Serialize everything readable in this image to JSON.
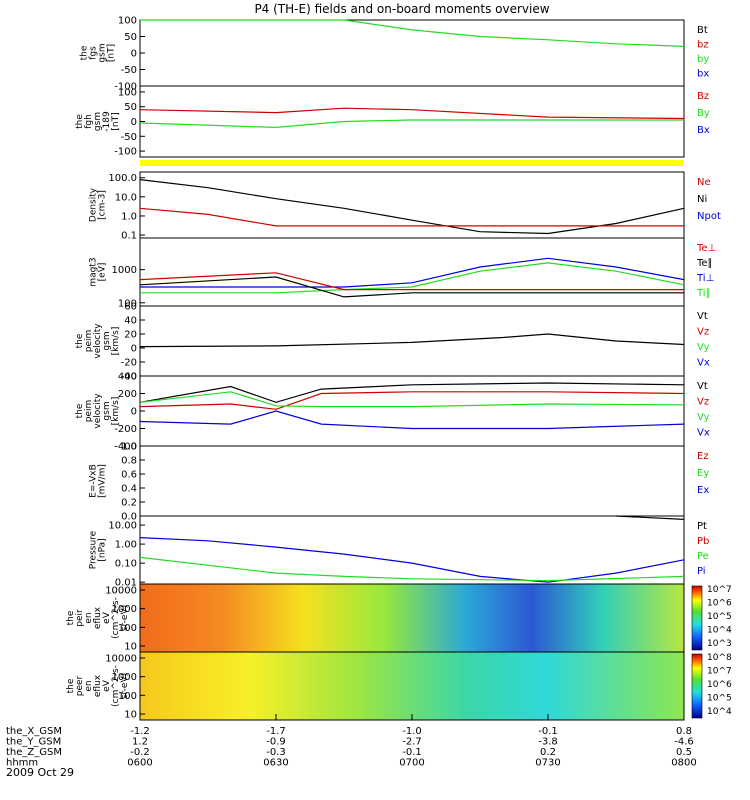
{
  "title": "P4 (TH-E) fields and on-board moments overview",
  "date_label": "2009 Oct 29",
  "colors": {
    "black": "#000000",
    "red": "#d10000",
    "green": "#22dd22",
    "blue": "#0000dd",
    "yellow": "#ffff00"
  },
  "panels": [
    {
      "id": "fgs",
      "ylabel": [
        "the",
        "fgs",
        "gsm",
        "[nT]"
      ],
      "ticks": [
        "100",
        "50",
        "0",
        "-50",
        "-100"
      ],
      "ylim": [
        -100,
        100
      ],
      "scale": "linear",
      "legend": [
        {
          "t": "Bt",
          "c": "black"
        },
        {
          "t": "bz",
          "c": "red"
        },
        {
          "t": "by",
          "c": "green"
        },
        {
          "t": "bx",
          "c": "blue"
        }
      ]
    },
    {
      "id": "fgh",
      "ylabel": [
        "the",
        "fgh",
        "gsm",
        "-189",
        "[nT]"
      ],
      "ticks": [
        "100",
        "50",
        "0",
        "-50",
        "-100"
      ],
      "ylim": [
        -120,
        120
      ],
      "scale": "linear",
      "legend": [
        {
          "t": "Bz",
          "c": "red"
        },
        {
          "t": "By",
          "c": "green"
        },
        {
          "t": "Bx",
          "c": "blue"
        }
      ]
    },
    {
      "id": "density",
      "ylabel": [
        "Density",
        "[cm-3]"
      ],
      "ticks": [
        "100.0",
        "10.0",
        "1.0",
        "0.1"
      ],
      "ylim": [
        0.07,
        200
      ],
      "scale": "log",
      "legend": [
        {
          "t": "Ne",
          "c": "red"
        },
        {
          "t": "Ni",
          "c": "black"
        },
        {
          "t": "Npot",
          "c": "blue"
        }
      ]
    },
    {
      "id": "temp",
      "ylabel": [
        "magt3",
        "[eV]"
      ],
      "ticks": [
        "1000",
        "100"
      ],
      "ylim": [
        80,
        9000
      ],
      "scale": "log",
      "legend": [
        {
          "t": "Te⊥",
          "c": "red"
        },
        {
          "t": "Te∥",
          "c": "black"
        },
        {
          "t": "Ti⊥",
          "c": "blue"
        },
        {
          "t": "Ti∥",
          "c": "green"
        }
      ]
    },
    {
      "id": "velocity_e",
      "ylabel": [
        "the",
        "peim",
        "velocity",
        "gsm",
        "[km/s]"
      ],
      "ticks": [
        "60",
        "40",
        "20",
        "0",
        "-20",
        "-40"
      ],
      "ylim": [
        -40,
        60
      ],
      "scale": "linear",
      "legend": [
        {
          "t": "Vt",
          "c": "black"
        },
        {
          "t": "Vz",
          "c": "red"
        },
        {
          "t": "Vy",
          "c": "green"
        },
        {
          "t": "Vx",
          "c": "blue"
        }
      ]
    },
    {
      "id": "velocity_i",
      "ylabel": [
        "the",
        "peim",
        "velocity",
        "gsm",
        "[km/s]"
      ],
      "ticks": [
        "400",
        "200",
        "0",
        "-200",
        "-400"
      ],
      "ylim": [
        -400,
        400
      ],
      "scale": "linear",
      "legend": [
        {
          "t": "Vt",
          "c": "black"
        },
        {
          "t": "Vz",
          "c": "red"
        },
        {
          "t": "Vy",
          "c": "green"
        },
        {
          "t": "Vx",
          "c": "blue"
        }
      ]
    },
    {
      "id": "efield",
      "ylabel": [
        "E=-VxB",
        "[mV/m]"
      ],
      "ticks": [
        "1.0",
        "0.8",
        "0.6",
        "0.4",
        "0.2",
        "0.0"
      ],
      "ylim": [
        0,
        1
      ],
      "scale": "linear",
      "legend": [
        {
          "t": "Ez",
          "c": "red"
        },
        {
          "t": "Ey",
          "c": "green"
        },
        {
          "t": "Ex",
          "c": "blue"
        }
      ]
    },
    {
      "id": "pressure",
      "ylabel": [
        "Pressure",
        "[nPa]"
      ],
      "ticks": [
        "10.00",
        "1.00",
        "0.10",
        "0.01"
      ],
      "ylim": [
        0.008,
        30
      ],
      "scale": "log",
      "legend": [
        {
          "t": "Pt",
          "c": "black"
        },
        {
          "t": "Pb",
          "c": "red"
        },
        {
          "t": "Pe",
          "c": "green"
        },
        {
          "t": "Pi",
          "c": "blue"
        }
      ]
    },
    {
      "id": "peir",
      "ylabel": [
        "the",
        "peir",
        "en",
        "eflux",
        "eV",
        "(cm^2-s-",
        "sr-eV)"
      ],
      "ticks": [
        "10000",
        "1000",
        "100",
        "10"
      ],
      "scale": "log",
      "colorbar_ticks": [
        "10^7",
        "10^6",
        "10^5",
        "10^4",
        "10^3"
      ]
    },
    {
      "id": "peer",
      "ylabel": [
        "the",
        "peer",
        "en",
        "eflux",
        "eV",
        "(cm^2-s-",
        "sr-eV)"
      ],
      "ticks": [
        "10000",
        "1000",
        "100",
        "10"
      ],
      "scale": "log",
      "colorbar_ticks": [
        "10^8",
        "10^7",
        "10^6",
        "10^5",
        "10^4"
      ]
    }
  ],
  "axis_rows": [
    {
      "label": "the_X_GSM",
      "values": [
        "-1.2",
        "-1.7",
        "-1.0",
        "-0.1",
        "0.8"
      ]
    },
    {
      "label": "the_Y_GSM",
      "values": [
        "1.2",
        "-0.9",
        "-2.7",
        "-3.8",
        "-4.6"
      ]
    },
    {
      "label": "the_Z_GSM",
      "values": [
        "-0.2",
        "-0.3",
        "-0.1",
        "0.2",
        "0.5"
      ]
    },
    {
      "label": "hhmm",
      "values": [
        "0600",
        "0630",
        "0700",
        "0730",
        "0800"
      ]
    }
  ],
  "chart_data": {
    "type": "line",
    "title": "P4 (TH-E) fields and on-board moments overview",
    "x_ticks": [
      "0600",
      "0630",
      "0700",
      "0730",
      "0800"
    ],
    "xlim": [
      "0600",
      "0800"
    ],
    "series": [
      {
        "panel": "fgs",
        "name": "by",
        "color": "green",
        "x": [
          "0600",
          "0615",
          "0630",
          "0645",
          "0700",
          "0715",
          "0730",
          "0745",
          "0800"
        ],
        "values": [
          100,
          100,
          100,
          100,
          70,
          50,
          40,
          28,
          20
        ]
      },
      {
        "panel": "fgh",
        "name": "Bz",
        "color": "red",
        "x": [
          "0600",
          "0630",
          "0645",
          "0700",
          "0730",
          "0800"
        ],
        "values": [
          40,
          30,
          45,
          40,
          15,
          10
        ]
      },
      {
        "panel": "fgh",
        "name": "By",
        "color": "green",
        "x": [
          "0600",
          "0630",
          "0645",
          "0700",
          "0730",
          "0800"
        ],
        "values": [
          -5,
          -20,
          0,
          5,
          5,
          5
        ]
      },
      {
        "panel": "density",
        "name": "Ni",
        "color": "black",
        "x": [
          "0600",
          "0615",
          "0630",
          "0645",
          "0700",
          "0715",
          "0730",
          "0745",
          "0800"
        ],
        "values": [
          80,
          30,
          8,
          2.5,
          0.6,
          0.15,
          0.12,
          0.4,
          2.5
        ]
      },
      {
        "panel": "density",
        "name": "Ne",
        "color": "red",
        "x": [
          "0600",
          "0615",
          "0630",
          "0645",
          "0700",
          "0730",
          "0800"
        ],
        "values": [
          2.5,
          1.2,
          0.3,
          0.3,
          0.3,
          0.3,
          0.3
        ]
      },
      {
        "panel": "temp",
        "name": "Ti⊥",
        "color": "blue",
        "x": [
          "0600",
          "0630",
          "0645",
          "0700",
          "0715",
          "0730",
          "0745",
          "0800"
        ],
        "values": [
          300,
          300,
          300,
          400,
          1200,
          2200,
          1200,
          500
        ]
      },
      {
        "panel": "temp",
        "name": "Ti∥",
        "color": "green",
        "x": [
          "0600",
          "0630",
          "0645",
          "0700",
          "0715",
          "0730",
          "0745",
          "0800"
        ],
        "values": [
          200,
          200,
          250,
          300,
          900,
          1600,
          900,
          350
        ]
      },
      {
        "panel": "temp",
        "name": "Te⊥",
        "color": "red",
        "x": [
          "0600",
          "0630",
          "0645",
          "0700",
          "0730",
          "0800"
        ],
        "values": [
          500,
          800,
          250,
          250,
          250,
          250
        ]
      },
      {
        "panel": "temp",
        "name": "Te∥",
        "color": "black",
        "x": [
          "0600",
          "0630",
          "0645",
          "0700",
          "0730",
          "0800"
        ],
        "values": [
          350,
          600,
          150,
          200,
          200,
          200
        ]
      },
      {
        "panel": "velocity_e",
        "name": "Vt",
        "color": "black",
        "x": [
          "0600",
          "0630",
          "0700",
          "0720",
          "0730",
          "0745",
          "0800"
        ],
        "values": [
          2,
          3,
          8,
          15,
          20,
          10,
          5
        ]
      },
      {
        "panel": "velocity_i",
        "name": "Vt",
        "color": "black",
        "x": [
          "0600",
          "0620",
          "0630",
          "0640",
          "0700",
          "0730",
          "0800"
        ],
        "values": [
          100,
          280,
          100,
          250,
          300,
          320,
          300
        ]
      },
      {
        "panel": "velocity_i",
        "name": "Vz",
        "color": "red",
        "x": [
          "0600",
          "0620",
          "0630",
          "0640",
          "0700",
          "0730",
          "0800"
        ],
        "values": [
          50,
          80,
          20,
          200,
          220,
          220,
          200
        ]
      },
      {
        "panel": "velocity_i",
        "name": "Vy",
        "color": "green",
        "x": [
          "0600",
          "0620",
          "0630",
          "0640",
          "0700",
          "0730",
          "0800"
        ],
        "values": [
          100,
          220,
          60,
          50,
          50,
          80,
          70
        ]
      },
      {
        "panel": "velocity_i",
        "name": "Vx",
        "color": "blue",
        "x": [
          "0600",
          "0620",
          "0630",
          "0640",
          "0700",
          "0730",
          "0800"
        ],
        "values": [
          -120,
          -150,
          0,
          -150,
          -200,
          -200,
          -150
        ]
      },
      {
        "panel": "pressure",
        "name": "Pi",
        "color": "blue",
        "x": [
          "0600",
          "0615",
          "0630",
          "0645",
          "0700",
          "0715",
          "0730",
          "0745",
          "0800"
        ],
        "values": [
          2.2,
          1.5,
          0.7,
          0.3,
          0.1,
          0.02,
          0.01,
          0.03,
          0.15
        ]
      },
      {
        "panel": "pressure",
        "name": "Pe",
        "color": "green",
        "x": [
          "0600",
          "0630",
          "0645",
          "0700",
          "0730",
          "0800"
        ],
        "values": [
          0.2,
          0.03,
          0.02,
          0.015,
          0.012,
          0.02
        ]
      },
      {
        "panel": "pressure",
        "name": "Pt",
        "color": "black",
        "x": [
          "0745",
          "0800"
        ],
        "values": [
          30,
          20
        ]
      }
    ]
  }
}
